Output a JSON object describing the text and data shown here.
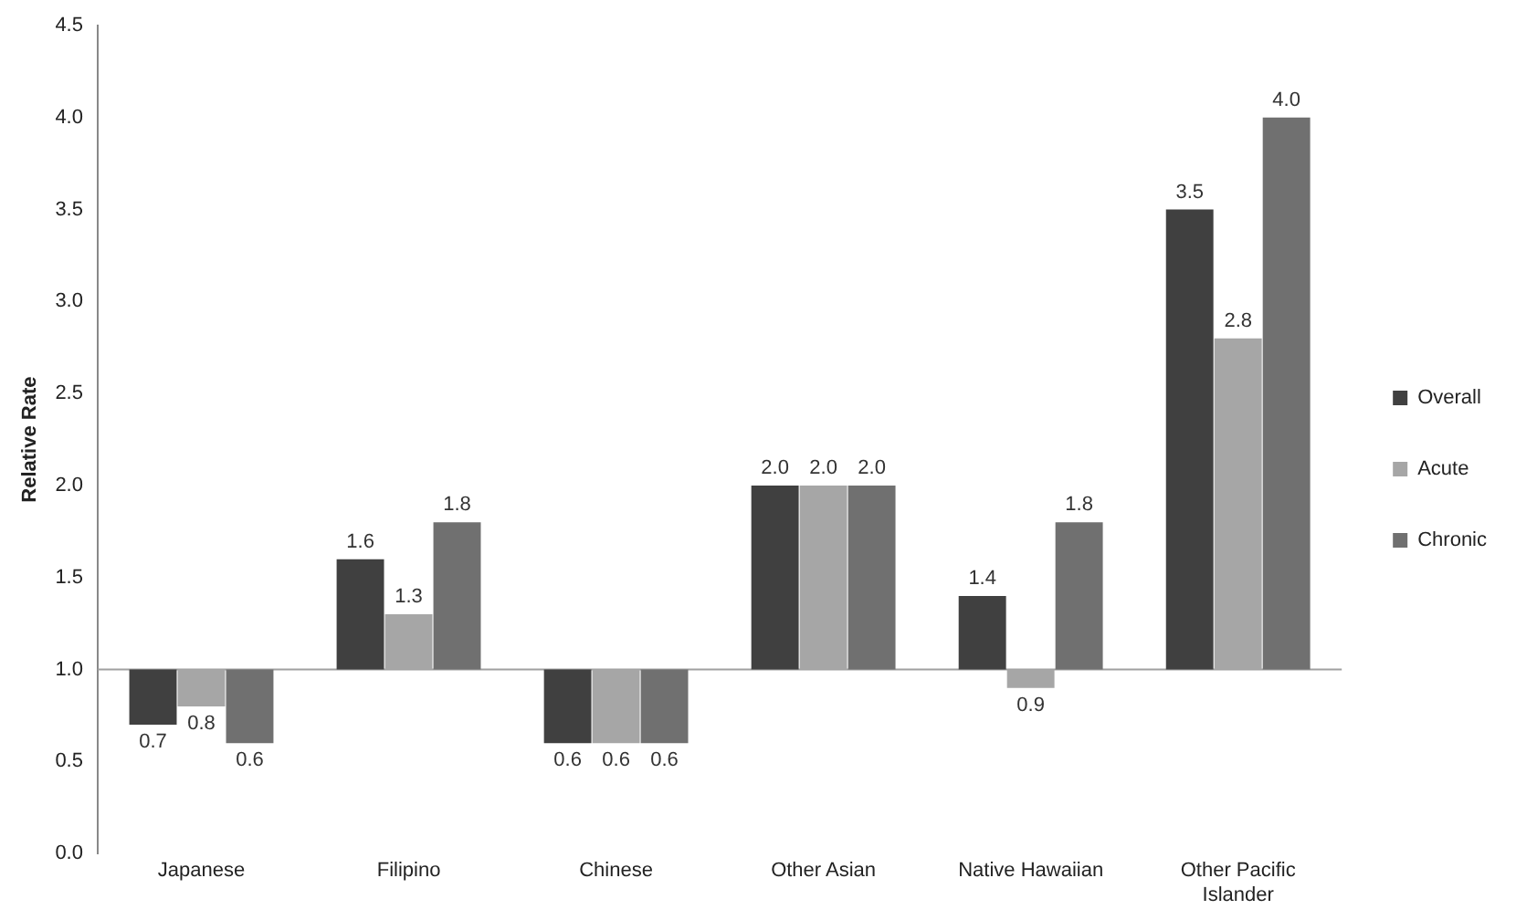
{
  "chart_data": {
    "type": "bar",
    "ylabel": "Relative Rate",
    "categories": [
      "Japanese",
      "Filipino",
      "Chinese",
      "Other Asian",
      "Native Hawaiian",
      "Other Pacific Islander"
    ],
    "series": [
      {
        "name": "Overall",
        "color": "#404040",
        "base": [
          1,
          1,
          1,
          1,
          1,
          1
        ],
        "values": [
          -0.3,
          0.6,
          -0.4,
          1.0,
          0.4,
          2.5
        ],
        "value_labels": [
          "0.7",
          "1.6",
          "0.6",
          "2.0",
          "1.4",
          "3.5"
        ]
      },
      {
        "name": "Acute",
        "color": "#a6a6a6",
        "base": [
          1,
          1,
          1,
          1,
          1,
          1
        ],
        "values": [
          -0.2,
          0.3,
          -0.4,
          1.0,
          -0.1,
          1.8
        ],
        "value_labels": [
          "0.8",
          "1.3",
          "0.6",
          "2.0",
          "0.9",
          "2.8"
        ]
      },
      {
        "name": "Chronic",
        "color": "#707070",
        "base": [
          1,
          1,
          1,
          1,
          1,
          1
        ],
        "values": [
          -0.4,
          0.8,
          -0.4,
          1.0,
          0.8,
          3.0
        ],
        "value_labels": [
          "0.6",
          "1.8",
          "0.6",
          "2.0",
          "1.8",
          "4.0"
        ]
      }
    ],
    "ylim": [
      0,
      4.5
    ],
    "yticks": [
      {
        "value": 0,
        "label": "0.0"
      },
      {
        "value": 0.5,
        "label": "0.5"
      },
      {
        "value": 1,
        "label": "1.0"
      },
      {
        "value": 1.5,
        "label": "1.5"
      },
      {
        "value": 2,
        "label": "2.0"
      },
      {
        "value": 2.5,
        "label": "2.5"
      },
      {
        "value": 3,
        "label": "3.0"
      },
      {
        "value": 3.5,
        "label": "3.5"
      },
      {
        "value": 4,
        "label": "4.0"
      },
      {
        "value": 4.5,
        "label": "4.5"
      }
    ],
    "ref_lines": [
      {
        "axis": "y",
        "value": 1,
        "color": "#a0a0a0"
      }
    ],
    "grid": false,
    "legend": "right"
  }
}
